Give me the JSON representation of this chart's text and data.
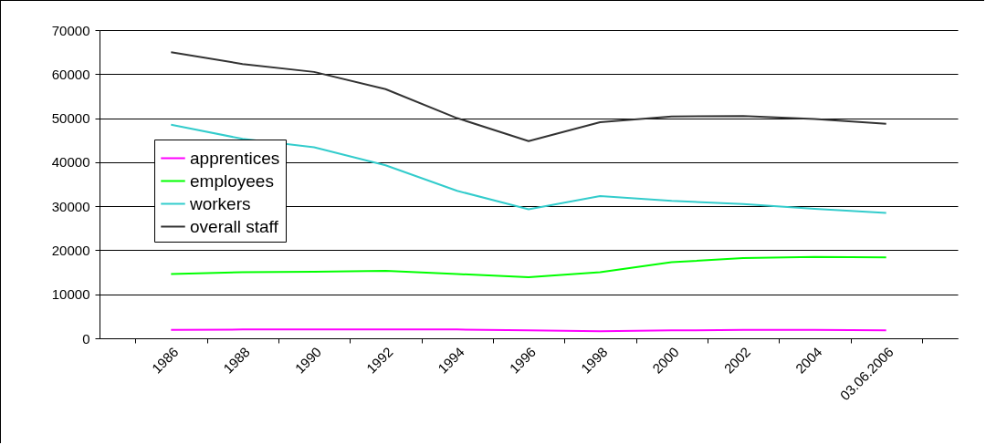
{
  "chart_data": {
    "type": "line",
    "categories": [
      "1986",
      "1988",
      "1990",
      "1992",
      "1994",
      "1996",
      "1998",
      "2000",
      "2002",
      "2004",
      "03.06.2006"
    ],
    "series": [
      {
        "name": "apprentices",
        "color": "#ff00ff",
        "values": [
          1900,
          2000,
          2000,
          2000,
          2000,
          1800,
          1600,
          1800,
          1900,
          1900,
          1800
        ]
      },
      {
        "name": "employees",
        "color": "#00ff00",
        "values": [
          14600,
          15000,
          15100,
          15300,
          14600,
          13900,
          15000,
          17300,
          18200,
          18500,
          18400
        ]
      },
      {
        "name": "workers",
        "color": "#33cccc",
        "values": [
          48500,
          45300,
          43400,
          39300,
          33500,
          29300,
          32300,
          31200,
          30500,
          29400,
          28500
        ]
      },
      {
        "name": "overall staff",
        "color": "#333333",
        "values": [
          65000,
          62300,
          60500,
          56600,
          50000,
          44800,
          49100,
          50400,
          50500,
          49800,
          48700
        ]
      }
    ],
    "ylim": [
      0,
      70000
    ],
    "yticks": [
      0,
      10000,
      20000,
      30000,
      40000,
      50000,
      60000,
      70000
    ],
    "grid": "y",
    "legend": "left",
    "marker": "none",
    "line_style": "solid"
  }
}
